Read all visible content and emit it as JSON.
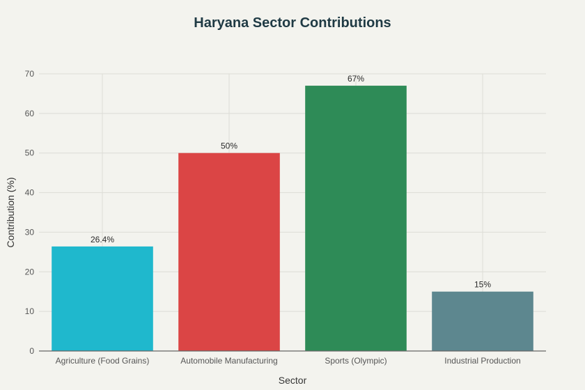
{
  "chart_data": {
    "type": "bar",
    "title": "Haryana Sector Contributions",
    "xlabel": "Sector",
    "ylabel": "Contribution (%)",
    "categories": [
      "Agriculture (Food Grains)",
      "Automobile Manufacturing",
      "Sports (Olympic)",
      "Industrial Production"
    ],
    "values": [
      26.4,
      50,
      67,
      15
    ],
    "data_labels": [
      "26.4%",
      "50%",
      "67%",
      "15%"
    ],
    "colors": [
      "#1fb8cd",
      "#db4545",
      "#2e8b57",
      "#5d878f"
    ],
    "ylim": [
      0,
      70
    ],
    "yticks": [
      0,
      10,
      20,
      30,
      40,
      50,
      60,
      70
    ],
    "grid": true,
    "legend": "none"
  }
}
